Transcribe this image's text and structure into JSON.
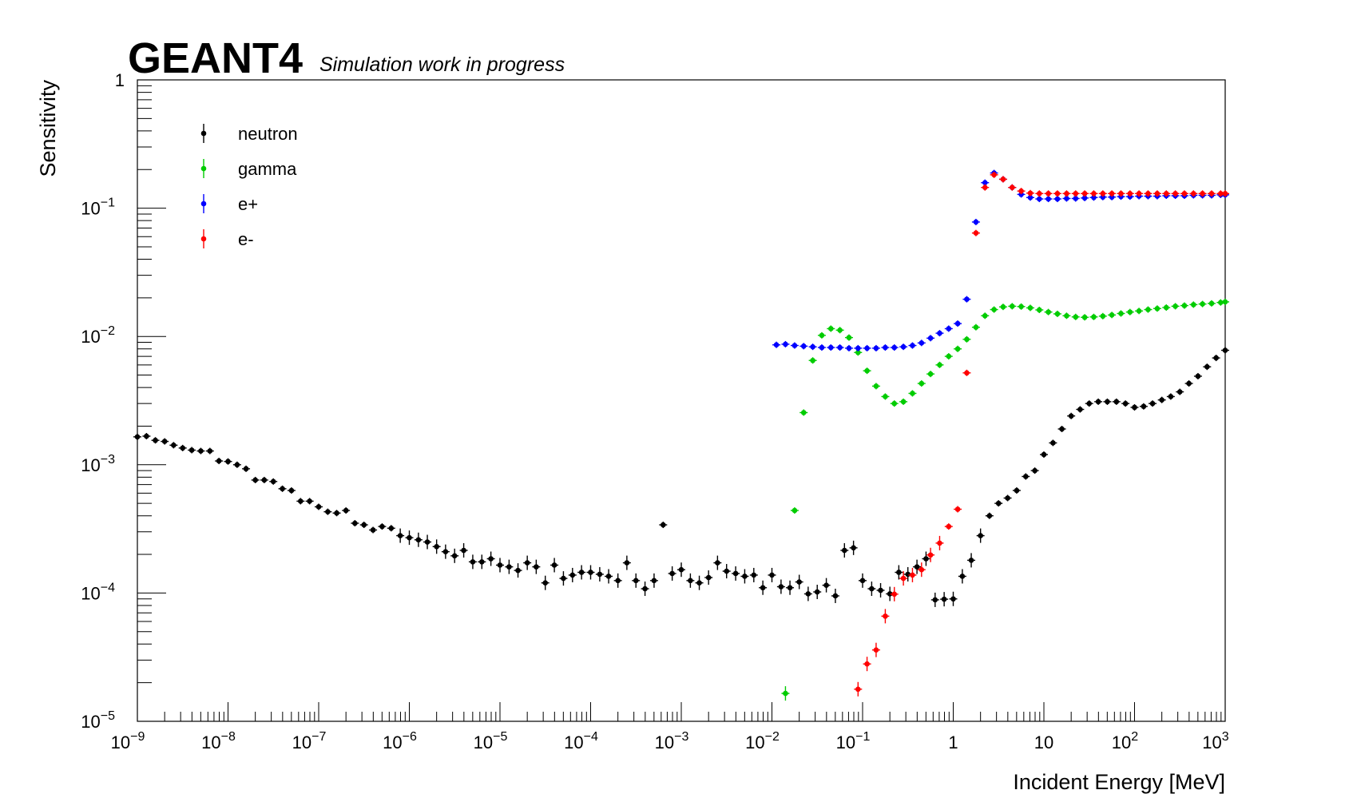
{
  "header": {
    "brand": "GEANT4",
    "subtitle": "Simulation work in progress"
  },
  "chart_data": {
    "type": "scatter",
    "title": "",
    "xlabel": "Incident Energy [MeV]",
    "ylabel": "Sensitivity",
    "xscale": "log",
    "yscale": "log",
    "xlim": [
      1e-09,
      1000
    ],
    "ylim": [
      1e-05,
      1
    ],
    "grid": false,
    "legend_position": "top-left",
    "x_tick_labels": [
      {
        "base": "10",
        "exp": "−9"
      },
      {
        "base": "10",
        "exp": "−8"
      },
      {
        "base": "10",
        "exp": "−7"
      },
      {
        "base": "10",
        "exp": "−6"
      },
      {
        "base": "10",
        "exp": "−5"
      },
      {
        "base": "10",
        "exp": "−4"
      },
      {
        "base": "10",
        "exp": "−3"
      },
      {
        "base": "10",
        "exp": "−2"
      },
      {
        "base": "10",
        "exp": "−1"
      },
      {
        "base": "1",
        "exp": ""
      },
      {
        "base": "10",
        "exp": ""
      },
      {
        "base": "10",
        "exp": "2"
      },
      {
        "base": "10",
        "exp": "3"
      }
    ],
    "y_tick_labels": [
      {
        "base": "10",
        "exp": "−5"
      },
      {
        "base": "10",
        "exp": "−4"
      },
      {
        "base": "10",
        "exp": "−3"
      },
      {
        "base": "10",
        "exp": "−2"
      },
      {
        "base": "10",
        "exp": "−1"
      },
      {
        "base": "1",
        "exp": ""
      }
    ],
    "series": [
      {
        "name": "neutron",
        "color": "#000000",
        "x": [
          1e-09,
          1.26e-09,
          1.58e-09,
          2e-09,
          2.51e-09,
          3.16e-09,
          3.98e-09,
          5.01e-09,
          6.31e-09,
          7.94e-09,
          1e-08,
          1.26e-08,
          1.58e-08,
          2e-08,
          2.51e-08,
          3.16e-08,
          3.98e-08,
          5.01e-08,
          6.31e-08,
          7.94e-08,
          1e-07,
          1.26e-07,
          1.58e-07,
          2e-07,
          2.51e-07,
          3.16e-07,
          3.98e-07,
          5.01e-07,
          6.31e-07,
          7.94e-07,
          1e-06,
          1.26e-06,
          1.58e-06,
          2e-06,
          2.51e-06,
          3.16e-06,
          3.98e-06,
          5.01e-06,
          6.31e-06,
          7.94e-06,
          1e-05,
          1.26e-05,
          1.58e-05,
          2e-05,
          2.51e-05,
          3.16e-05,
          3.98e-05,
          5.01e-05,
          6.31e-05,
          7.94e-05,
          0.0001,
          0.000126,
          0.000158,
          0.0002,
          0.000251,
          0.000316,
          0.000398,
          0.000501,
          0.000631,
          0.000794,
          0.001,
          0.00126,
          0.00158,
          0.002,
          0.00251,
          0.00316,
          0.00398,
          0.00501,
          0.00631,
          0.00794,
          0.01,
          0.0126,
          0.0158,
          0.02,
          0.0251,
          0.0316,
          0.0398,
          0.0501,
          0.0631,
          0.0794,
          0.1,
          0.126,
          0.158,
          0.2,
          0.251,
          0.316,
          0.398,
          0.501,
          0.631,
          0.794,
          1,
          1.26,
          1.58,
          2,
          2.51,
          3.16,
          3.98,
          5.01,
          6.31,
          7.94,
          10,
          12.6,
          15.8,
          20,
          25.1,
          31.6,
          39.8,
          50.1,
          63.1,
          79.4,
          100,
          126,
          158,
          200,
          251,
          316,
          398,
          501,
          631,
          794,
          1000
        ],
        "y": [
          0.00165,
          0.00167,
          0.00155,
          0.00152,
          0.00142,
          0.00135,
          0.0013,
          0.00128,
          0.00128,
          0.00107,
          0.00106,
          0.001,
          0.00093,
          0.00076,
          0.00076,
          0.00074,
          0.00065,
          0.00063,
          0.00052,
          0.00052,
          0.00047,
          0.00043,
          0.00042,
          0.00044,
          0.00035,
          0.00034,
          0.00031,
          0.00033,
          0.00032,
          0.00028,
          0.00027,
          0.00026,
          0.00025,
          0.00023,
          0.00021,
          0.000195,
          0.000215,
          0.000175,
          0.000175,
          0.000185,
          0.000165,
          0.00016,
          0.00015,
          0.000172,
          0.00016,
          0.00012,
          0.000165,
          0.00013,
          0.000138,
          0.000145,
          0.000145,
          0.00014,
          0.000135,
          0.000125,
          0.000172,
          0.000125,
          0.000108,
          0.000125,
          0.00034,
          0.000142,
          0.000152,
          0.000125,
          0.00012,
          0.000132,
          0.000172,
          0.000148,
          0.000142,
          0.000135,
          0.000138,
          0.00011,
          0.000138,
          0.000112,
          0.00011,
          0.000122,
          9.85e-05,
          0.000102,
          0.000115,
          9.5e-05,
          0.000215,
          0.000225,
          0.000125,
          0.000108,
          0.000105,
          9.85e-05,
          0.000145,
          0.00014,
          0.00016,
          0.000185,
          8.85e-05,
          8.95e-05,
          9e-05,
          0.000135,
          0.00018,
          0.00028,
          0.0004,
          0.0005,
          0.00055,
          0.00063,
          0.00081,
          0.0009,
          0.0012,
          0.00148,
          0.0019,
          0.0024,
          0.0027,
          0.003,
          0.0031,
          0.0031,
          0.0031,
          0.003,
          0.0028,
          0.00285,
          0.003,
          0.0032,
          0.0034,
          0.0037,
          0.0043,
          0.0049,
          0.0058,
          0.0068,
          0.0078
        ]
      },
      {
        "name": "gamma",
        "color": "#00cc00",
        "x": [
          0.0141,
          0.0178,
          0.0224,
          0.0282,
          0.0355,
          0.0447,
          0.0562,
          0.0708,
          0.0891,
          0.112,
          0.141,
          0.178,
          0.224,
          0.282,
          0.355,
          0.447,
          0.562,
          0.708,
          0.891,
          1.12,
          1.41,
          1.78,
          2.24,
          2.82,
          3.55,
          4.47,
          5.62,
          7.08,
          8.91,
          11.2,
          14.1,
          17.8,
          22.4,
          28.2,
          35.5,
          44.7,
          56.2,
          70.8,
          89.1,
          112,
          141,
          178,
          224,
          282,
          355,
          447,
          562,
          708,
          891,
          1000
        ],
        "y": [
          1.65e-05,
          0.00044,
          0.00255,
          0.0065,
          0.0102,
          0.0115,
          0.0112,
          0.0098,
          0.0075,
          0.0054,
          0.0041,
          0.0034,
          0.003,
          0.0031,
          0.0036,
          0.0043,
          0.0051,
          0.006,
          0.007,
          0.008,
          0.0095,
          0.0118,
          0.0145,
          0.0162,
          0.017,
          0.0172,
          0.0171,
          0.0167,
          0.0161,
          0.0155,
          0.015,
          0.0145,
          0.0142,
          0.0141,
          0.0142,
          0.0144,
          0.0147,
          0.0151,
          0.0155,
          0.0158,
          0.0162,
          0.0165,
          0.0168,
          0.0172,
          0.0174,
          0.0177,
          0.0179,
          0.0181,
          0.0184,
          0.0186
        ]
      },
      {
        "name": "e+",
        "color": "#0000ff",
        "x": [
          0.0112,
          0.0141,
          0.0178,
          0.0224,
          0.0282,
          0.0355,
          0.0447,
          0.0562,
          0.0708,
          0.0891,
          0.112,
          0.141,
          0.178,
          0.224,
          0.282,
          0.355,
          0.447,
          0.562,
          0.708,
          0.891,
          1.12,
          1.41,
          1.78,
          2.24,
          2.82,
          3.55,
          4.47,
          5.62,
          7.08,
          8.91,
          11.2,
          14.1,
          17.8,
          22.4,
          28.2,
          35.5,
          44.7,
          56.2,
          70.8,
          89.1,
          112,
          141,
          178,
          224,
          282,
          355,
          447,
          562,
          708,
          891,
          1000
        ],
        "y": [
          0.0086,
          0.0087,
          0.0085,
          0.0084,
          0.0083,
          0.0082,
          0.0082,
          0.0082,
          0.0081,
          0.0081,
          0.0081,
          0.0081,
          0.0082,
          0.0082,
          0.0083,
          0.0085,
          0.0089,
          0.0097,
          0.0106,
          0.0115,
          0.0126,
          0.0195,
          0.078,
          0.158,
          0.188,
          0.168,
          0.145,
          0.128,
          0.121,
          0.118,
          0.118,
          0.118,
          0.119,
          0.119,
          0.12,
          0.121,
          0.122,
          0.122,
          0.123,
          0.123,
          0.124,
          0.124,
          0.124,
          0.125,
          0.125,
          0.125,
          0.126,
          0.126,
          0.126,
          0.127,
          0.127
        ]
      },
      {
        "name": "e-",
        "color": "#ff0000",
        "x": [
          0.0891,
          0.112,
          0.141,
          0.178,
          0.224,
          0.282,
          0.355,
          0.447,
          0.562,
          0.708,
          0.891,
          1.12,
          1.41,
          1.78,
          2.24,
          2.82,
          3.55,
          4.47,
          5.62,
          7.08,
          8.91,
          11.2,
          14.1,
          17.8,
          22.4,
          28.2,
          35.5,
          44.7,
          56.2,
          70.8,
          89.1,
          112,
          141,
          178,
          224,
          282,
          355,
          447,
          562,
          708,
          891,
          1000
        ],
        "y": [
          1.78e-05,
          2.8e-05,
          3.6e-05,
          6.6e-05,
          9.8e-05,
          0.00013,
          0.000138,
          0.000152,
          0.000198,
          0.000245,
          0.00033,
          0.00045,
          0.0052,
          0.064,
          0.145,
          0.182,
          0.168,
          0.145,
          0.136,
          0.131,
          0.13,
          0.13,
          0.13,
          0.13,
          0.13,
          0.13,
          0.13,
          0.13,
          0.13,
          0.13,
          0.13,
          0.13,
          0.13,
          0.13,
          0.13,
          0.13,
          0.13,
          0.13,
          0.13,
          0.13,
          0.13,
          0.13
        ]
      }
    ]
  }
}
